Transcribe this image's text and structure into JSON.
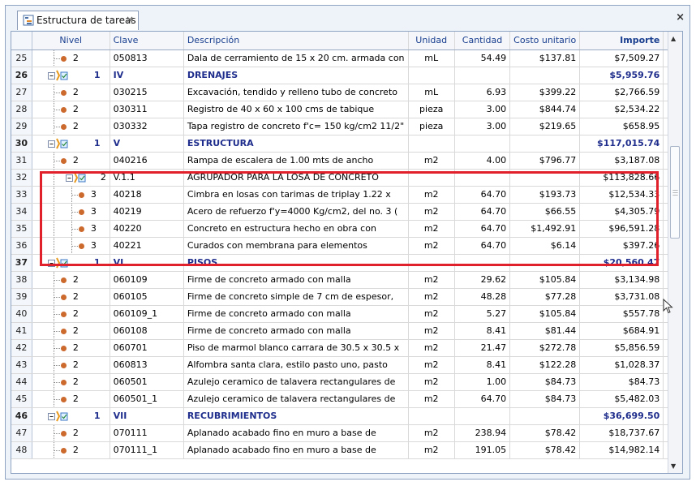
{
  "tab": {
    "title": "Estructura de tareas",
    "close": "×"
  },
  "panel_close": "×",
  "columns": {
    "nivel": "Nivel",
    "clave": "Clave",
    "descripcion": "Descripción",
    "unidad": "Unidad",
    "cantidad": "Cantidad",
    "costo": "Costo unitario",
    "importe": "Importe"
  },
  "colors": {
    "group_text": "#1f2e8c",
    "highlight": "#e0202a",
    "dot": "#cc6a2e"
  },
  "rows": [
    {
      "n": "25",
      "lvl": "2",
      "kind": "item",
      "depth": 1,
      "clave": "050813",
      "desc": "Dala de cerramiento de 15 x 20 cm. armada con",
      "unidad": "mL",
      "cantidad": "54.49",
      "costo": "$137.81",
      "importe": "$7,509.27"
    },
    {
      "n": "26",
      "lvl": "1",
      "kind": "group",
      "depth": 0,
      "clave": "IV",
      "desc": "DRENAJES",
      "unidad": "",
      "cantidad": "",
      "costo": "",
      "importe": "$5,959.76"
    },
    {
      "n": "27",
      "lvl": "2",
      "kind": "item",
      "depth": 1,
      "clave": "030215",
      "desc": "Excavación, tendido y relleno tubo de concreto",
      "unidad": "mL",
      "cantidad": "6.93",
      "costo": "$399.22",
      "importe": "$2,766.59"
    },
    {
      "n": "28",
      "lvl": "2",
      "kind": "item",
      "depth": 1,
      "clave": "030311",
      "desc": "Registro de 40 x 60 x 100 cms de tabique",
      "unidad": "pieza",
      "cantidad": "3.00",
      "costo": "$844.74",
      "importe": "$2,534.22"
    },
    {
      "n": "29",
      "lvl": "2",
      "kind": "item",
      "depth": 1,
      "clave": "030332",
      "desc": "Tapa registro de concreto f'c= 150 kg/cm2  11/2\"",
      "unidad": "pieza",
      "cantidad": "3.00",
      "costo": "$219.65",
      "importe": "$658.95"
    },
    {
      "n": "30",
      "lvl": "1",
      "kind": "group",
      "depth": 0,
      "clave": "V",
      "desc": "ESTRUCTURA",
      "unidad": "",
      "cantidad": "",
      "costo": "",
      "importe": "$117,015.74"
    },
    {
      "n": "31",
      "lvl": "2",
      "kind": "item",
      "depth": 1,
      "clave": "040216",
      "desc": "Rampa de escalera de 1.00 mts de ancho",
      "unidad": "m2",
      "cantidad": "4.00",
      "costo": "$796.77",
      "importe": "$3,187.08"
    },
    {
      "n": "32",
      "lvl": "2",
      "kind": "subgroup",
      "depth": 1,
      "clave": "V.1.1",
      "desc": "AGRUPADOR PARA LA LOSA DE CONCRETO",
      "unidad": "",
      "cantidad": "",
      "costo": "",
      "importe": "$113,828.66"
    },
    {
      "n": "33",
      "lvl": "3",
      "kind": "item",
      "depth": 2,
      "clave": "40218",
      "desc": "Cimbra en losas con tarimas de triplay 1.22 x",
      "unidad": "m2",
      "cantidad": "64.70",
      "costo": "$193.73",
      "importe": "$12,534.33"
    },
    {
      "n": "34",
      "lvl": "3",
      "kind": "item",
      "depth": 2,
      "clave": "40219",
      "desc": "Acero de refuerzo f'y=4000 Kg/cm2, del no. 3 (",
      "unidad": "m2",
      "cantidad": "64.70",
      "costo": "$66.55",
      "importe": "$4,305.79"
    },
    {
      "n": "35",
      "lvl": "3",
      "kind": "item",
      "depth": 2,
      "clave": "40220",
      "desc": "Concreto en estructura hecho en obra con",
      "unidad": "m2",
      "cantidad": "64.70",
      "costo": "$1,492.91",
      "importe": "$96,591.28"
    },
    {
      "n": "36",
      "lvl": "3",
      "kind": "item",
      "depth": 2,
      "clave": "40221",
      "desc": "Curados con membrana para elementos",
      "unidad": "m2",
      "cantidad": "64.70",
      "costo": "$6.14",
      "importe": "$397.26"
    },
    {
      "n": "37",
      "lvl": "1",
      "kind": "group",
      "depth": 0,
      "clave": "VI",
      "desc": "PISOS",
      "unidad": "",
      "cantidad": "",
      "costo": "",
      "importe": "$20,560.47"
    },
    {
      "n": "38",
      "lvl": "2",
      "kind": "item",
      "depth": 1,
      "clave": "060109",
      "desc": "Firme de concreto armado con malla",
      "unidad": "m2",
      "cantidad": "29.62",
      "costo": "$105.84",
      "importe": "$3,134.98"
    },
    {
      "n": "39",
      "lvl": "2",
      "kind": "item",
      "depth": 1,
      "clave": "060105",
      "desc": "Firme de concreto simple de 7 cm de espesor,",
      "unidad": "m2",
      "cantidad": "48.28",
      "costo": "$77.28",
      "importe": "$3,731.08"
    },
    {
      "n": "40",
      "lvl": "2",
      "kind": "item",
      "depth": 1,
      "clave": "060109_1",
      "desc": "Firme de concreto armado con malla",
      "unidad": "m2",
      "cantidad": "5.27",
      "costo": "$105.84",
      "importe": "$557.78"
    },
    {
      "n": "41",
      "lvl": "2",
      "kind": "item",
      "depth": 1,
      "clave": "060108",
      "desc": "Firme de concreto armado con malla",
      "unidad": "m2",
      "cantidad": "8.41",
      "costo": "$81.44",
      "importe": "$684.91"
    },
    {
      "n": "42",
      "lvl": "2",
      "kind": "item",
      "depth": 1,
      "clave": "060701",
      "desc": "Piso de marmol blanco carrara de 30.5 x 30.5 x",
      "unidad": "m2",
      "cantidad": "21.47",
      "costo": "$272.78",
      "importe": "$5,856.59"
    },
    {
      "n": "43",
      "lvl": "2",
      "kind": "item",
      "depth": 1,
      "clave": "060813",
      "desc": "Alfombra santa clara, estilo pasto uno, pasto",
      "unidad": "m2",
      "cantidad": "8.41",
      "costo": "$122.28",
      "importe": "$1,028.37"
    },
    {
      "n": "44",
      "lvl": "2",
      "kind": "item",
      "depth": 1,
      "clave": "060501",
      "desc": "Azulejo ceramico de talavera rectangulares de",
      "unidad": "m2",
      "cantidad": "1.00",
      "costo": "$84.73",
      "importe": "$84.73"
    },
    {
      "n": "45",
      "lvl": "2",
      "kind": "item",
      "depth": 1,
      "clave": "060501_1",
      "desc": "Azulejo ceramico de talavera rectangulares de",
      "unidad": "m2",
      "cantidad": "64.70",
      "costo": "$84.73",
      "importe": "$5,482.03"
    },
    {
      "n": "46",
      "lvl": "1",
      "kind": "group",
      "depth": 0,
      "clave": "VII",
      "desc": "RECUBRIMIENTOS",
      "unidad": "",
      "cantidad": "",
      "costo": "",
      "importe": "$36,699.50"
    },
    {
      "n": "47",
      "lvl": "2",
      "kind": "item",
      "depth": 1,
      "clave": "070111",
      "desc": "Aplanado acabado fino en muro a base de",
      "unidad": "m2",
      "cantidad": "238.94",
      "costo": "$78.42",
      "importe": "$18,737.67"
    },
    {
      "n": "48",
      "lvl": "2",
      "kind": "item",
      "depth": 1,
      "clave": "070111_1",
      "desc": "Aplanado acabado fino en muro a base de",
      "unidad": "m2",
      "cantidad": "191.05",
      "costo": "$78.42",
      "importe": "$14,982.14"
    }
  ]
}
